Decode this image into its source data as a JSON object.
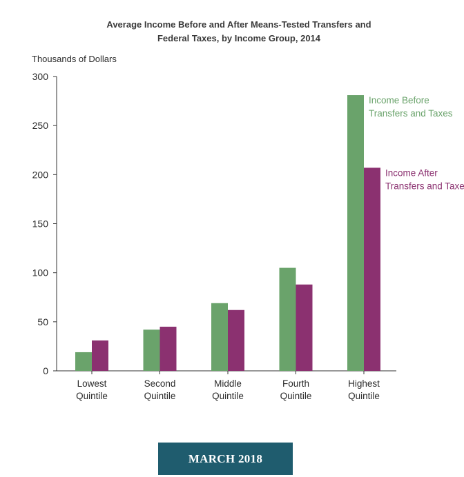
{
  "chart_data": {
    "type": "bar",
    "title_lines": [
      "Average Income Before and After Means-Tested Transfers and",
      "Federal Taxes, by Income Group, 2014"
    ],
    "ylabel": "Thousands of Dollars",
    "xlabel": "",
    "ylim": [
      0,
      300
    ],
    "yticks": [
      "0",
      "50",
      "100",
      "150",
      "200",
      "250",
      "300"
    ],
    "ytick_values": [
      0,
      50,
      100,
      150,
      200,
      250,
      300
    ],
    "grid": false,
    "categories": [
      [
        "Lowest",
        "Quintile"
      ],
      [
        "Second",
        "Quintile"
      ],
      [
        "Middle",
        "Quintile"
      ],
      [
        "Fourth",
        "Quintile"
      ],
      [
        "Highest",
        "Quintile"
      ]
    ],
    "series": [
      {
        "name_lines": [
          "Income Before",
          "Transfers and Taxes"
        ],
        "color": "#6aa36b",
        "values": [
          19,
          42,
          69,
          105,
          281
        ]
      },
      {
        "name_lines": [
          "Income After",
          "Transfers and Taxes"
        ],
        "color": "#8b3170",
        "values": [
          31,
          45,
          62,
          88,
          207
        ]
      }
    ],
    "legend_placement": "right, next to highest bars"
  },
  "footer": {
    "label": "MARCH 2018",
    "color": "#1f5c6e"
  }
}
